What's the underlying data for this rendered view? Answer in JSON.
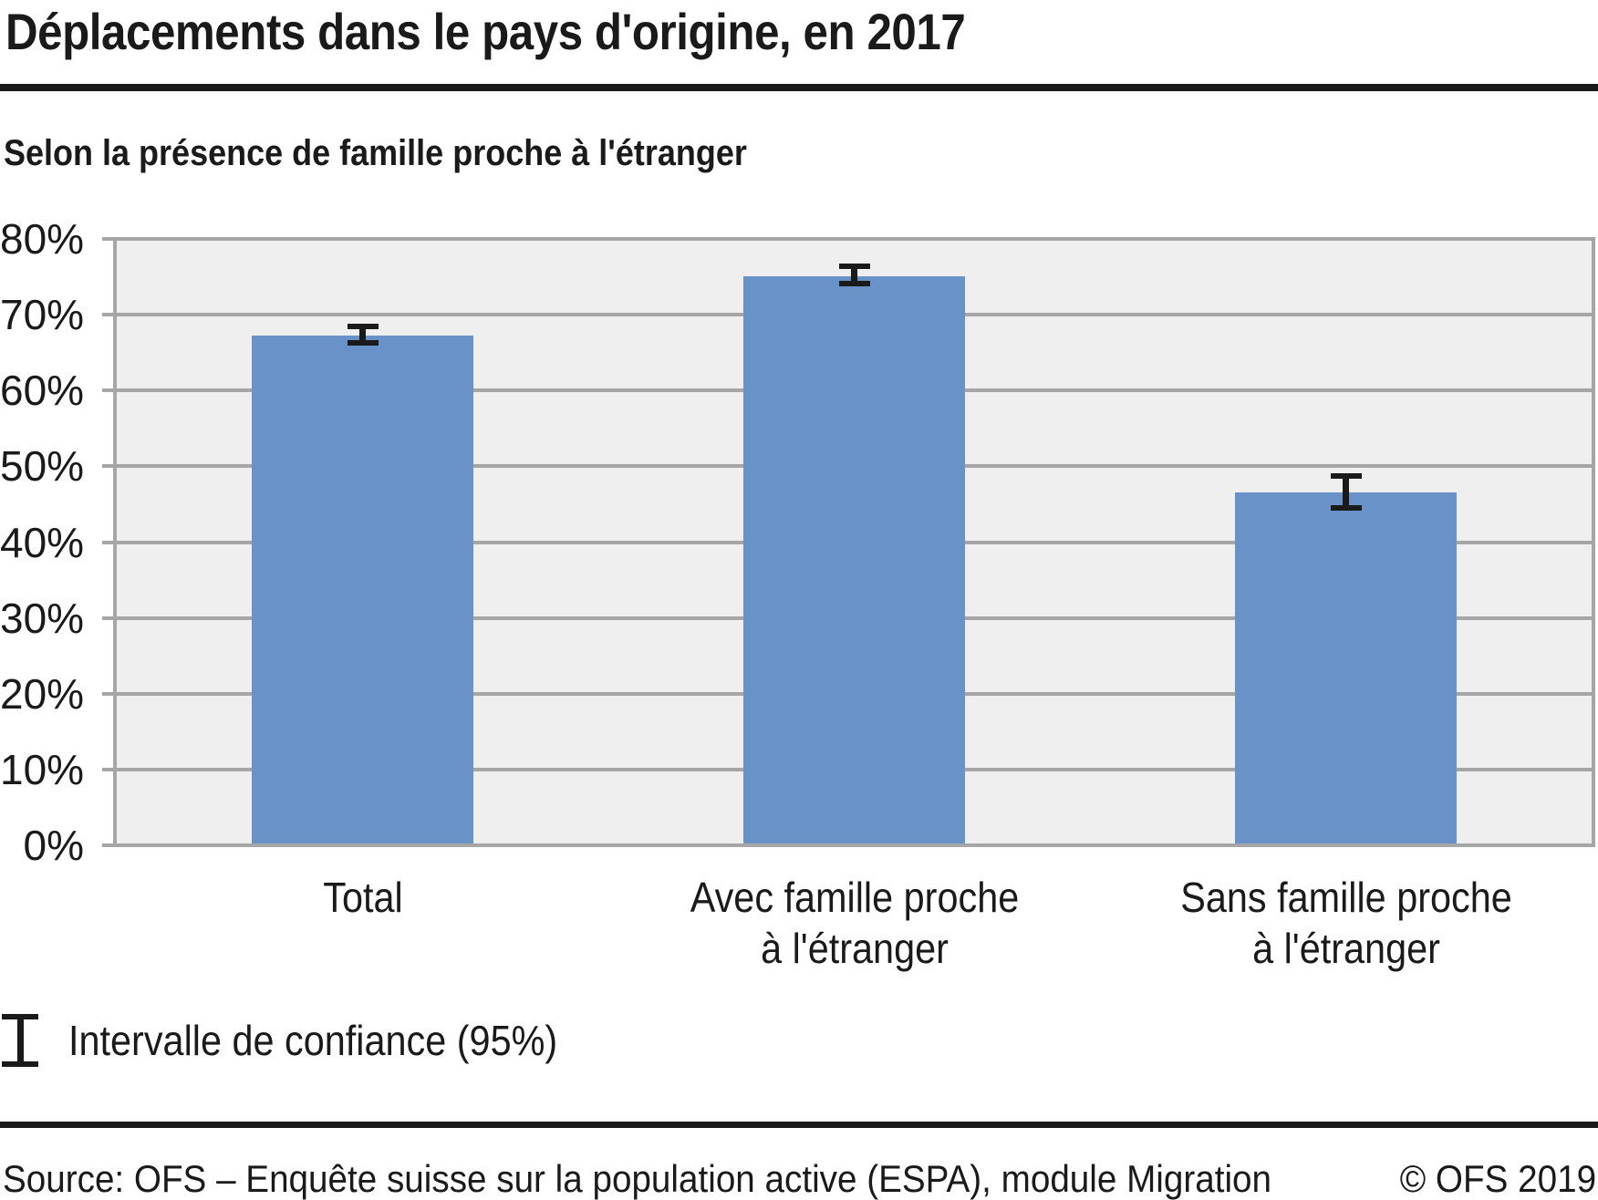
{
  "title": "Déplacements dans le pays d'origine, en 2017",
  "subtitle": "Selon la présence de famille proche à l'étranger",
  "legend": {
    "label": "Intervalle de confiance (95%)"
  },
  "footer": {
    "source": "Source: OFS – Enquête suisse sur la population active (ESPA), module Migration",
    "copyright": "© OFS 2019"
  },
  "colors": {
    "bar": "#6992c9",
    "plot_bg": "#efefef",
    "grid": "#a6a6a6",
    "text": "#1a1a1a"
  },
  "chart_data": {
    "type": "bar",
    "title": "Déplacements dans le pays d'origine, en 2017",
    "subtitle": "Selon la présence de famille proche à l'étranger",
    "categories": [
      "Total",
      "Avec famille proche à l'étranger",
      "Sans famille proche à l'étranger"
    ],
    "category_lines": [
      [
        "Total"
      ],
      [
        "Avec famille proche",
        "à l'étranger"
      ],
      [
        "Sans famille proche",
        "à l'étranger"
      ]
    ],
    "values": [
      67.3,
      75.1,
      46.6
    ],
    "confidence_intervals": [
      [
        66.3,
        68.4
      ],
      [
        74.1,
        76.4
      ],
      [
        44.5,
        48.7
      ]
    ],
    "confidence_level": "95%",
    "unit": "%",
    "ylim": [
      0,
      80
    ],
    "ytick_step": 10,
    "ytick_labels": [
      "0%",
      "10%",
      "20%",
      "30%",
      "40%",
      "50%",
      "60%",
      "70%",
      "80%"
    ],
    "grid": true,
    "legend_position": "bottom-left",
    "xlabel": "",
    "ylabel": ""
  }
}
